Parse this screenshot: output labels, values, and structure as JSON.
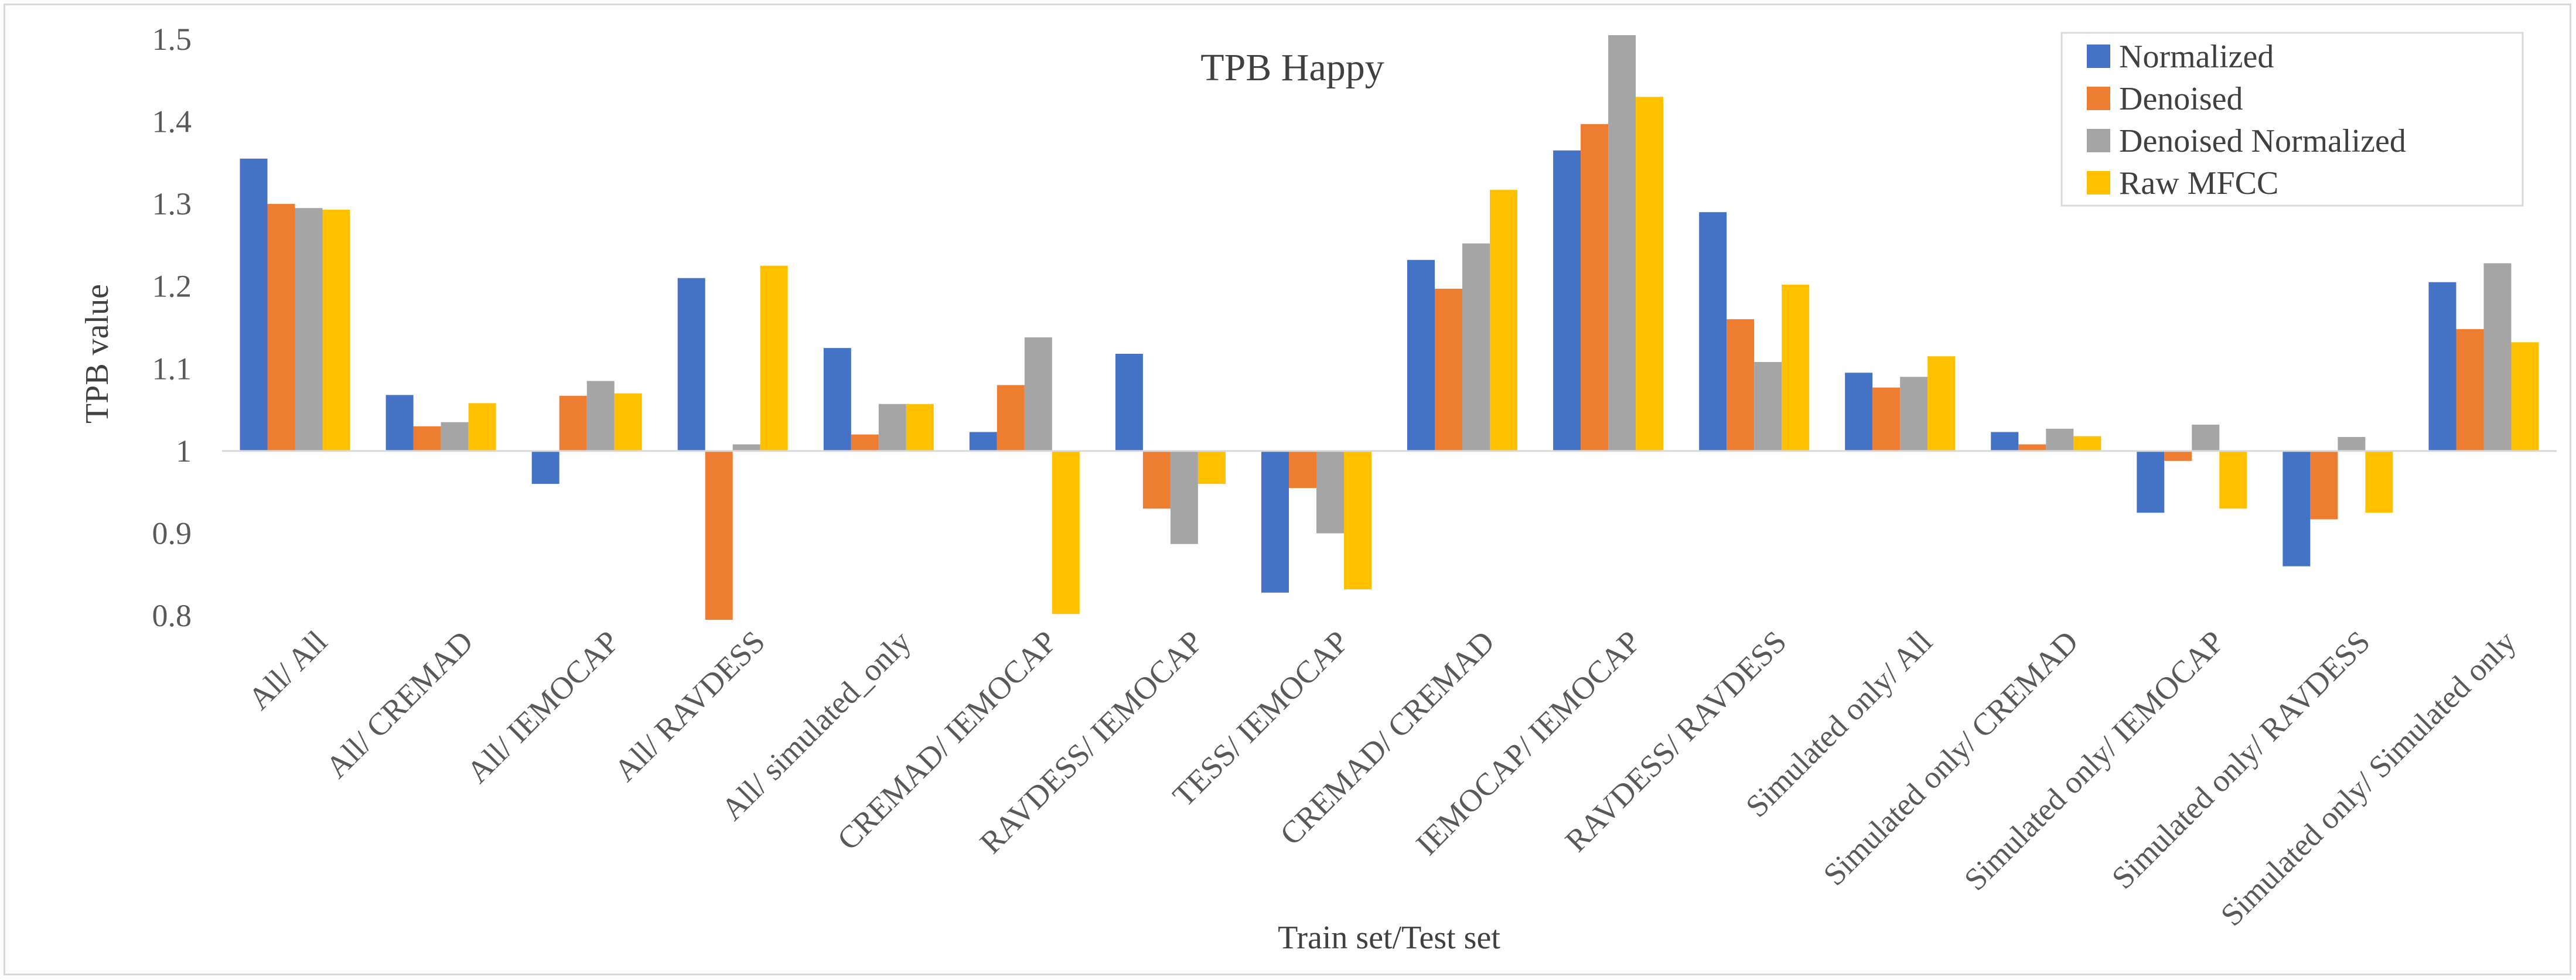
{
  "chart_data": {
    "type": "bar",
    "title": "TPB Happy",
    "xlabel": "Train set/Test set",
    "ylabel": "TPB value",
    "ylim": [
      0.8,
      1.5
    ],
    "yticks": [
      {
        "value": 0.8,
        "label": "0.8"
      },
      {
        "value": 0.9,
        "label": "0.9"
      },
      {
        "value": 1.0,
        "label": "1"
      },
      {
        "value": 1.1,
        "label": "1.1"
      },
      {
        "value": 1.2,
        "label": "1.2"
      },
      {
        "value": 1.3,
        "label": "1.3"
      },
      {
        "value": 1.4,
        "label": "1.4"
      },
      {
        "value": 1.5,
        "label": "1.5"
      }
    ],
    "baseline": 1.0,
    "legend_position": "top-right",
    "grid": false,
    "categories": [
      "All/ All",
      "All/ CREMAD",
      "All/ IEMOCAP",
      "All/ RAVDESS",
      "All/ simulated_only",
      "CREMAD/ IEMOCAP",
      "RAVDESS/ IEMOCAP",
      "TESS/ IEMOCAP",
      "CREMAD/ CREMAD",
      "IEMOCAP/ IEMOCAP",
      "RAVDESS/ RAVDESS",
      "Simulated only/ All",
      "Simulated only/ CREMAD",
      "Simulated only/ IEMOCAP",
      "Simulated only/ RAVDESS",
      "Simulated only/ Simulated only"
    ],
    "series": [
      {
        "name": "Normalized",
        "color": "#4472c4",
        "values": [
          1.355,
          1.068,
          0.96,
          1.21,
          1.125,
          1.023,
          1.118,
          0.828,
          1.232,
          1.365,
          1.29,
          1.095,
          1.023,
          0.925,
          0.86,
          1.205
        ]
      },
      {
        "name": "Denoised",
        "color": "#ed7d31",
        "values": [
          1.3,
          1.03,
          1.067,
          0.795,
          1.02,
          1.08,
          0.93,
          0.955,
          1.197,
          1.397,
          1.16,
          1.077,
          1.008,
          0.988,
          0.917,
          1.148
        ]
      },
      {
        "name": "Denoised Normalized",
        "color": "#a5a5a5",
        "values": [
          1.295,
          1.035,
          1.085,
          1.008,
          1.057,
          1.138,
          0.887,
          0.9,
          1.252,
          1.505,
          1.108,
          1.09,
          1.027,
          1.032,
          1.017,
          1.228
        ]
      },
      {
        "name": "Raw MFCC",
        "color": "#ffc000",
        "values": [
          1.293,
          1.058,
          1.07,
          1.225,
          1.057,
          0.802,
          0.96,
          0.832,
          1.317,
          1.43,
          1.202,
          1.115,
          1.018,
          0.93,
          0.925,
          1.132
        ]
      }
    ]
  }
}
